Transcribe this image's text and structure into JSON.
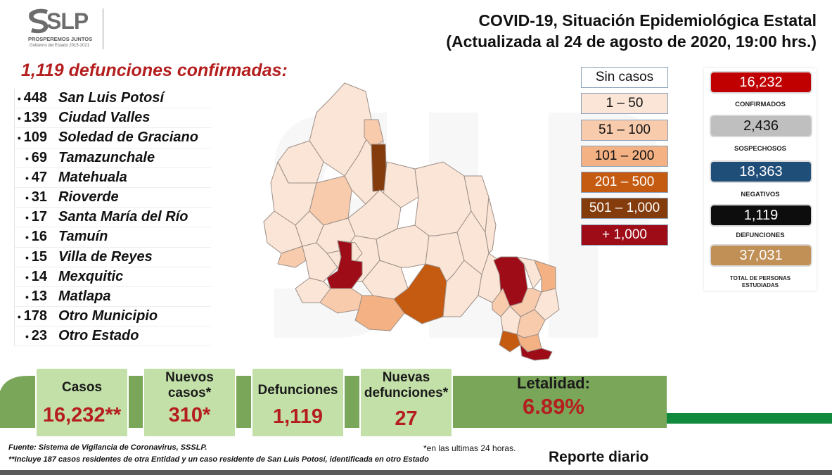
{
  "logo": {
    "brand": "SLP",
    "slogan": "PROSPEREMOS JUNTOS",
    "government": "Gobierno del Estado 2015-2021"
  },
  "title": {
    "line1": "COVID-19, Situación Epidemiológica Estatal",
    "line2": "(Actualizada al 24 de agosto de 2020, 19:00 hrs.)"
  },
  "deaths_header": "1,119 defunciones confirmadas:",
  "municipalities": [
    {
      "count": "448",
      "name": "San Luis Potosí"
    },
    {
      "count": "139",
      "name": "Ciudad Valles"
    },
    {
      "count": "109",
      "name": "Soledad de Graciano"
    },
    {
      "count": "69",
      "name": "Tamazunchale"
    },
    {
      "count": "47",
      "name": "Matehuala"
    },
    {
      "count": "31",
      "name": "Rioverde"
    },
    {
      "count": "17",
      "name": "Santa María del Río"
    },
    {
      "count": "16",
      "name": "Tamuín"
    },
    {
      "count": "15",
      "name": "Villa de Reyes"
    },
    {
      "count": "14",
      "name": "Mexquitic"
    },
    {
      "count": "13",
      "name": "Matlapa"
    },
    {
      "count": "178",
      "name": "Otro Municipio"
    },
    {
      "count": "23",
      "name": "Otro Estado"
    }
  ],
  "legend": [
    {
      "label": "Sin casos",
      "color": "#ffffff",
      "text_color": "#111111"
    },
    {
      "label": "1 – 50",
      "color": "#fbe5d6",
      "text_color": "#111111"
    },
    {
      "label": "51 – 100",
      "color": "#f8cbad",
      "text_color": "#111111"
    },
    {
      "label": "101 – 200",
      "color": "#f4b183",
      "text_color": "#111111"
    },
    {
      "label": "201 – 500",
      "color": "#c55a11",
      "text_color": "#ffffff"
    },
    {
      "label": "501 – 1,000",
      "color": "#843c0c",
      "text_color": "#ffffff"
    },
    {
      "label": "+ 1,000",
      "color": "#9e0c18",
      "text_color": "#ffffff"
    }
  ],
  "summary_panel": [
    {
      "value": "16,232",
      "label": "CONFIRMADOS",
      "color": "#c00000",
      "text_color": "#ffffff"
    },
    {
      "value": "2,436",
      "label": "SOSPECHOSOS",
      "color": "#bfbfbf",
      "text_color": "#111111"
    },
    {
      "value": "18,363",
      "label": "NEGATIVOS",
      "color": "#1f4e79",
      "text_color": "#ffffff"
    },
    {
      "value": "1,119",
      "label": "DEFUNCIONES",
      "color": "#0d0d0d",
      "text_color": "#ffffff"
    },
    {
      "value": "37,031",
      "label": "TOTAL DE PERSONAS ESTUDIADAS",
      "color": "#c09057",
      "text_color": "#ffffff"
    }
  ],
  "cards": {
    "casos": {
      "label": "Casos",
      "value": "16,232**"
    },
    "nuevos_casos": {
      "label": "Nuevos casos*",
      "value": "310*"
    },
    "defunciones": {
      "label": "Defunciones",
      "value": "1,119"
    },
    "nuevas_defunciones": {
      "label": "Nuevas defunciones*",
      "value": "27"
    },
    "letalidad": {
      "label": "Letalidad:",
      "value": "6.89%"
    }
  },
  "colors": {
    "band_green": "#7aa65a",
    "card_green": "#c2e0a8",
    "accent_red": "#b51e1e",
    "stripe_green": "#128a3d"
  },
  "footer": {
    "fuente": "Fuente: Sistema de Vigilancia de Coronavirus, SSSLP.",
    "nota_asterisco": "*en las ultimas 24 horas.",
    "nota_doble": "**Incluye 187 casos residentes de otra Entidad y un caso residente de San Luis Potosí, identificada en otro Estado",
    "reporte": "Reporte diario"
  }
}
